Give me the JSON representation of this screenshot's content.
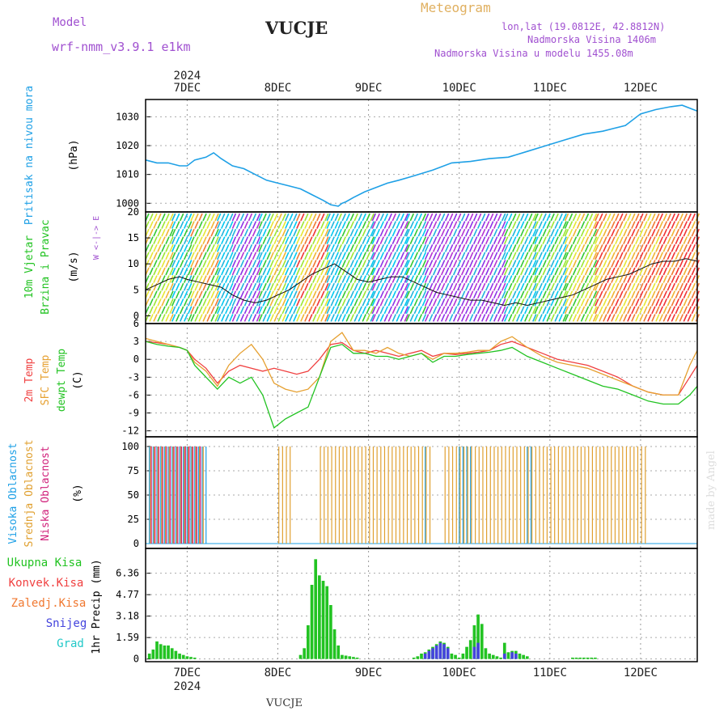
{
  "header": {
    "model_label": "Model",
    "model_name": "wrf-nmm_v3.9.1  e1km",
    "station": "VUCJE",
    "product": "Meteogram",
    "coords": "lon,lat (19.0812E, 42.8812N)",
    "elevation": "Nadmorska Visina 1406m",
    "model_elevation": "Nadmorska Visina u modelu 1455.08m",
    "credit": "made by Angel",
    "footer_station": "VUCJE"
  },
  "time_axis": {
    "year": "2024",
    "day_labels": [
      "7DEC",
      "8DEC",
      "9DEC",
      "10DEC",
      "11DEC",
      "12DEC"
    ],
    "day_positions": [
      0,
      24,
      48,
      72,
      96,
      120
    ],
    "range_hours": [
      -11,
      135
    ]
  },
  "colors": {
    "pressure": "#1ea0e6",
    "wind_label": "#22c322",
    "temp2m": "#f04040",
    "sfc_temp": "#e6a030",
    "dewpt": "#22c322",
    "cloud_high": "#1ea0e6",
    "cloud_mid": "#e0a030",
    "cloud_low": "#d0207a",
    "precip_total": "#22c322",
    "precip_conv": "#f04040",
    "precip_frozen": "#f07830",
    "precip_snow": "#4444dd",
    "precip_graupel": "#22c8c8",
    "header_purple": "#a050d0",
    "header_orange": "#e0b060"
  },
  "chart_data": [
    {
      "type": "line",
      "panel": "pressure",
      "ylabel_main": "Pritisak na nivou mora",
      "ylabel_unit": "(hPa)",
      "yticks": [
        1000,
        1010,
        1020,
        1030
      ],
      "ylim": [
        997,
        1036
      ],
      "grid": true,
      "series": [
        {
          "values_x": [
            -11,
            -8,
            -5,
            -2,
            0,
            2,
            5,
            7,
            9,
            12,
            15,
            18,
            21,
            24,
            27,
            30,
            33,
            36,
            38,
            40,
            41,
            42,
            44,
            47,
            50,
            53,
            56,
            60,
            65,
            70,
            75,
            80,
            85,
            90,
            95,
            100,
            105,
            110,
            113,
            116,
            120,
            124,
            128,
            131,
            134,
            135
          ],
          "values_y": [
            1015,
            1014,
            1014,
            1013,
            1013,
            1015,
            1016,
            1017.5,
            1015.5,
            1013,
            1012,
            1010,
            1008,
            1007,
            1006,
            1005,
            1003,
            1001,
            999.5,
            999,
            1000,
            1000.5,
            1002,
            1004,
            1005.5,
            1007,
            1008,
            1009.5,
            1011.5,
            1014,
            1014.5,
            1015.5,
            1016,
            1018,
            1020,
            1022,
            1024,
            1025,
            1026,
            1027,
            1031,
            1032.5,
            1033.5,
            1034,
            1032.5,
            1032
          ]
        }
      ]
    },
    {
      "type": "line",
      "panel": "wind",
      "ylabel_main": "10m Vjetar",
      "ylabel_sub": "Brzina i Pravac",
      "ylabel_unit": "(m/s)",
      "compass": "W <-|-> E",
      "yticks": [
        0,
        5,
        10,
        15,
        20
      ],
      "ylim": [
        -1.5,
        20
      ],
      "series": [
        {
          "name": "speed",
          "values_x": [
            -11,
            -8,
            -5,
            -2,
            0,
            3,
            6,
            9,
            12,
            15,
            18,
            21,
            24,
            27,
            30,
            33,
            36,
            39,
            42,
            45,
            48,
            51,
            54,
            57,
            60,
            63,
            66,
            69,
            72,
            75,
            78,
            81,
            84,
            87,
            90,
            93,
            96,
            99,
            102,
            105,
            108,
            111,
            114,
            117,
            120,
            123,
            126,
            129,
            132,
            135
          ],
          "values_y": [
            5,
            6,
            7,
            7.5,
            7,
            6.5,
            6,
            5.5,
            4,
            3,
            2.5,
            3,
            4,
            5,
            6.5,
            8,
            9,
            10,
            8.5,
            7,
            6.5,
            7,
            7.5,
            7.5,
            6.5,
            5.5,
            4.5,
            4,
            3.5,
            3,
            3,
            2.5,
            2,
            2.5,
            2,
            2.5,
            3,
            3.5,
            4,
            5,
            6,
            7,
            7.5,
            8,
            9,
            10,
            10.5,
            10.5,
            11,
            10.5
          ]
        }
      ]
    },
    {
      "type": "line",
      "panel": "temperature",
      "ylabel_main": [
        "2m Temp",
        "SFC Temp",
        "dewpt Temp"
      ],
      "ylabel_unit": "(C)",
      "yticks": [
        6,
        3,
        0,
        -3,
        -6,
        -9,
        -12
      ],
      "ylim": [
        -13,
        6
      ],
      "grid": true,
      "series": [
        {
          "name": "2m Temp",
          "values_x": [
            -11,
            -8,
            -5,
            -2,
            0,
            2,
            5,
            8,
            11,
            14,
            17,
            20,
            23,
            26,
            29,
            32,
            35,
            38,
            41,
            44,
            47,
            50,
            53,
            56,
            59,
            62,
            65,
            68,
            71,
            74,
            77,
            80,
            83,
            86,
            90,
            94,
            98,
            102,
            106,
            110,
            114,
            118,
            122,
            126,
            130,
            133,
            135
          ],
          "values_y": [
            3,
            2.8,
            2.5,
            2,
            1.5,
            0,
            -1.5,
            -4,
            -2,
            -1,
            -1.5,
            -2,
            -1.5,
            -2,
            -2.5,
            -2,
            0,
            2.5,
            2.8,
            1.5,
            1,
            1.5,
            1,
            0.5,
            1,
            1.5,
            0.5,
            1,
            0.8,
            1,
            1.2,
            1.5,
            2.5,
            3,
            2,
            1,
            0,
            -0.5,
            -1,
            -2,
            -3,
            -4.5,
            -5.5,
            -6,
            -6,
            -3,
            -1
          ]
        },
        {
          "name": "SFC Temp",
          "values_x": [
            -11,
            -8,
            -5,
            -2,
            0,
            2,
            5,
            8,
            11,
            14,
            17,
            20,
            23,
            26,
            29,
            32,
            35,
            38,
            41,
            44,
            47,
            50,
            53,
            56,
            59,
            62,
            65,
            68,
            71,
            74,
            77,
            80,
            83,
            86,
            90,
            94,
            98,
            102,
            106,
            110,
            114,
            118,
            122,
            126,
            130,
            133,
            135
          ],
          "values_y": [
            3.5,
            3,
            2.5,
            2,
            1.5,
            -0.5,
            -2,
            -4.5,
            -1,
            1,
            2.5,
            0,
            -4,
            -5,
            -5.5,
            -5,
            -3,
            3,
            4.5,
            1.5,
            1.5,
            1,
            2,
            1,
            0.5,
            1,
            0,
            1,
            1,
            1.2,
            1.5,
            1.5,
            3,
            3.8,
            2,
            0.5,
            -0.5,
            -1,
            -1.5,
            -2.5,
            -3.5,
            -4.5,
            -5.5,
            -6,
            -6,
            -1,
            1.5
          ]
        },
        {
          "name": "dewpt Temp",
          "values_x": [
            -11,
            -8,
            -5,
            -2,
            0,
            2,
            5,
            8,
            11,
            14,
            17,
            20,
            23,
            26,
            29,
            32,
            35,
            38,
            41,
            44,
            47,
            50,
            53,
            56,
            59,
            62,
            65,
            68,
            71,
            74,
            77,
            80,
            83,
            86,
            90,
            94,
            98,
            102,
            106,
            110,
            114,
            118,
            122,
            126,
            130,
            133,
            135
          ],
          "values_y": [
            3,
            2.5,
            2.2,
            2,
            1.5,
            -1,
            -3,
            -5,
            -3,
            -4,
            -3,
            -6,
            -11.5,
            -10,
            -9,
            -8,
            -3,
            2,
            2.5,
            1,
            1,
            0.5,
            0.5,
            0,
            0.5,
            1,
            -0.5,
            0.5,
            0.5,
            0.8,
            1,
            1.2,
            1.5,
            2,
            0.5,
            -0.5,
            -1.5,
            -2.5,
            -3.5,
            -4.5,
            -5,
            -6,
            -7,
            -7.5,
            -7.5,
            -6,
            -4.5
          ]
        }
      ]
    },
    {
      "type": "bar",
      "panel": "cloud",
      "ylabel_main": [
        "Visoka Oblacnost",
        "Srednja Oblacnost",
        "Niska Oblacnost"
      ],
      "ylabel_unit": "(%)",
      "yticks": [
        0,
        25,
        50,
        75,
        100
      ],
      "ylim": [
        -5,
        110
      ],
      "grid": true,
      "series": [
        {
          "name": "Visoka Oblacnost",
          "segments": [
            [
              -10,
              5
            ],
            [
              -1,
              1
            ],
            [
              24,
              4
            ],
            [
              28,
              26
            ],
            [
              53,
              35
            ],
            [
              63,
              63
            ],
            [
              72,
              75
            ],
            [
              90,
              91
            ]
          ],
          "value": 100
        },
        {
          "name": "Srednja Oblacnost",
          "segments": [
            [
              -10,
              4
            ],
            [
              24,
              27
            ],
            [
              35,
              64
            ],
            [
              68,
              121
            ]
          ],
          "value": 100
        },
        {
          "name": "Niska Oblacnost",
          "segments": [
            [
              -10,
              3
            ],
            [
              -2,
              2
            ]
          ],
          "value": 100
        }
      ]
    },
    {
      "type": "bar",
      "panel": "precip",
      "ylabel_main": [
        "Ukupna Kisa",
        "Konvek.Kisa",
        "Zaledj.Kisa",
        "Snijeg",
        "Grad"
      ],
      "ylabel_unit": "1hr Precip (mm)",
      "yticks": [
        0,
        1.59,
        3.18,
        4.77,
        6.36
      ],
      "ylim": [
        -0.2,
        8.2
      ],
      "grid": true,
      "series": [
        {
          "name": "Ukupna Kisa",
          "values_x": [
            -10,
            -9,
            -8,
            -7,
            -6,
            -5,
            -4,
            -3,
            -2,
            -1,
            0,
            1,
            2,
            30,
            31,
            32,
            33,
            34,
            35,
            36,
            37,
            38,
            39,
            40,
            41,
            42,
            43,
            44,
            45,
            60,
            61,
            62,
            63,
            64,
            65,
            66,
            67,
            68,
            69,
            70,
            71,
            72,
            73,
            74,
            75,
            76,
            77,
            78,
            79,
            80,
            81,
            82,
            83,
            84,
            85,
            86,
            87,
            88,
            89,
            90,
            102,
            103,
            104,
            105,
            106,
            107,
            108
          ],
          "values_y": [
            0.4,
            0.7,
            1.3,
            1.1,
            1.0,
            1.0,
            0.8,
            0.6,
            0.4,
            0.3,
            0.2,
            0.15,
            0.1,
            0.3,
            0.8,
            2.5,
            5.5,
            7.4,
            6.2,
            5.8,
            5.4,
            4.0,
            2.2,
            1.0,
            0.3,
            0.25,
            0.2,
            0.15,
            0.1,
            0.1,
            0.2,
            0.4,
            0.5,
            0.7,
            0.9,
            1.1,
            1.3,
            1.2,
            0.9,
            0.4,
            0.3,
            0.1,
            0.4,
            0.9,
            1.4,
            2.5,
            3.3,
            2.6,
            0.8,
            0.4,
            0.3,
            0.2,
            0.1,
            1.2,
            0.5,
            0.6,
            0.6,
            0.4,
            0.3,
            0.2,
            0.1,
            0.1,
            0.1,
            0.1,
            0.1,
            0.1,
            0.1
          ]
        },
        {
          "name": "Snijeg",
          "values_x": [
            63,
            64,
            65,
            66,
            67,
            68,
            69,
            76,
            77,
            84,
            86,
            87
          ],
          "values_y": [
            0.4,
            0.6,
            0.8,
            1.0,
            1.2,
            1.1,
            0.8,
            0.9,
            1.2,
            0.4,
            0.5,
            0.4
          ]
        }
      ]
    }
  ]
}
